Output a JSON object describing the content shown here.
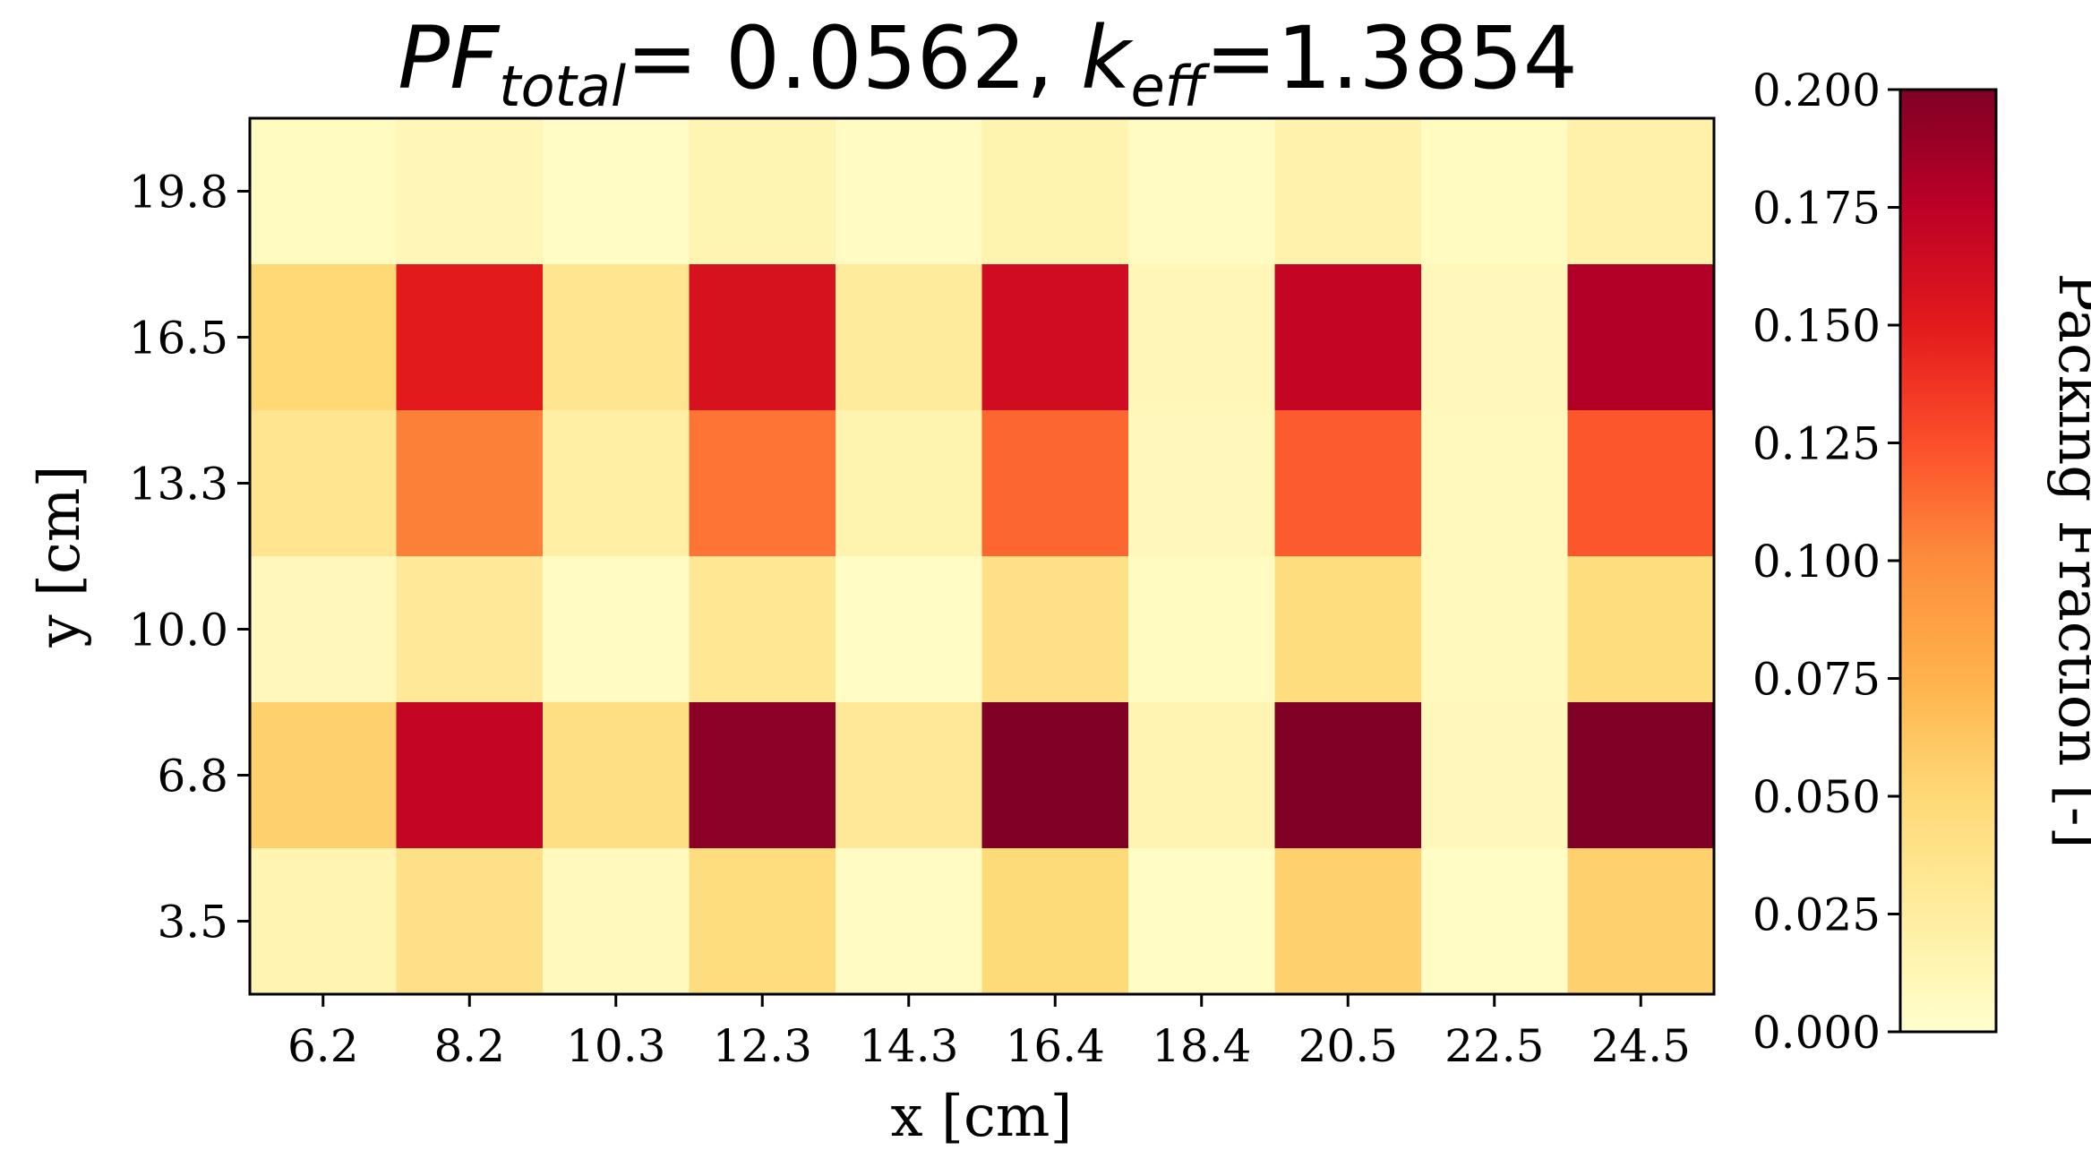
{
  "chart_data": {
    "type": "heatmap",
    "title": {
      "pf_symbol": "PF",
      "pf_subscript": "total",
      "pf_value": "= 0.0562, ",
      "k_symbol": "k",
      "k_subscript": "eff",
      "k_value": "=1.3854"
    },
    "xlabel": "x [cm]",
    "ylabel": "y [cm]",
    "x_ticks": [
      "6.2",
      "8.2",
      "10.3",
      "12.3",
      "14.3",
      "16.4",
      "18.4",
      "20.5",
      "22.5",
      "24.5"
    ],
    "y_ticks": [
      "19.8",
      "16.5",
      "13.3",
      "10.0",
      "6.8",
      "3.5"
    ],
    "values": [
      [
        0.006,
        0.012,
        0.004,
        0.014,
        0.005,
        0.016,
        0.005,
        0.018,
        0.006,
        0.02
      ],
      [
        0.05,
        0.15,
        0.035,
        0.158,
        0.028,
        0.163,
        0.012,
        0.17,
        0.01,
        0.18
      ],
      [
        0.035,
        0.105,
        0.022,
        0.11,
        0.016,
        0.115,
        0.01,
        0.12,
        0.008,
        0.122
      ],
      [
        0.01,
        0.03,
        0.005,
        0.033,
        0.004,
        0.04,
        0.006,
        0.045,
        0.008,
        0.045
      ],
      [
        0.055,
        0.17,
        0.042,
        0.195,
        0.03,
        0.2,
        0.015,
        0.2,
        0.01,
        0.2
      ],
      [
        0.015,
        0.04,
        0.008,
        0.045,
        0.005,
        0.048,
        0.004,
        0.055,
        0.004,
        0.055
      ]
    ],
    "colorbar": {
      "label": "Packing Fraction [-]",
      "range": [
        0.0,
        0.2
      ],
      "ticks": [
        "0.200",
        "0.175",
        "0.150",
        "0.125",
        "0.100",
        "0.075",
        "0.050",
        "0.025",
        "0.000"
      ],
      "colormap": "YlOrRd",
      "colors": [
        "#ffffcc",
        "#ffeda0",
        "#fed976",
        "#feb24c",
        "#fd8d3c",
        "#fc4e2a",
        "#e31a1c",
        "#bd0026",
        "#800026"
      ]
    }
  }
}
